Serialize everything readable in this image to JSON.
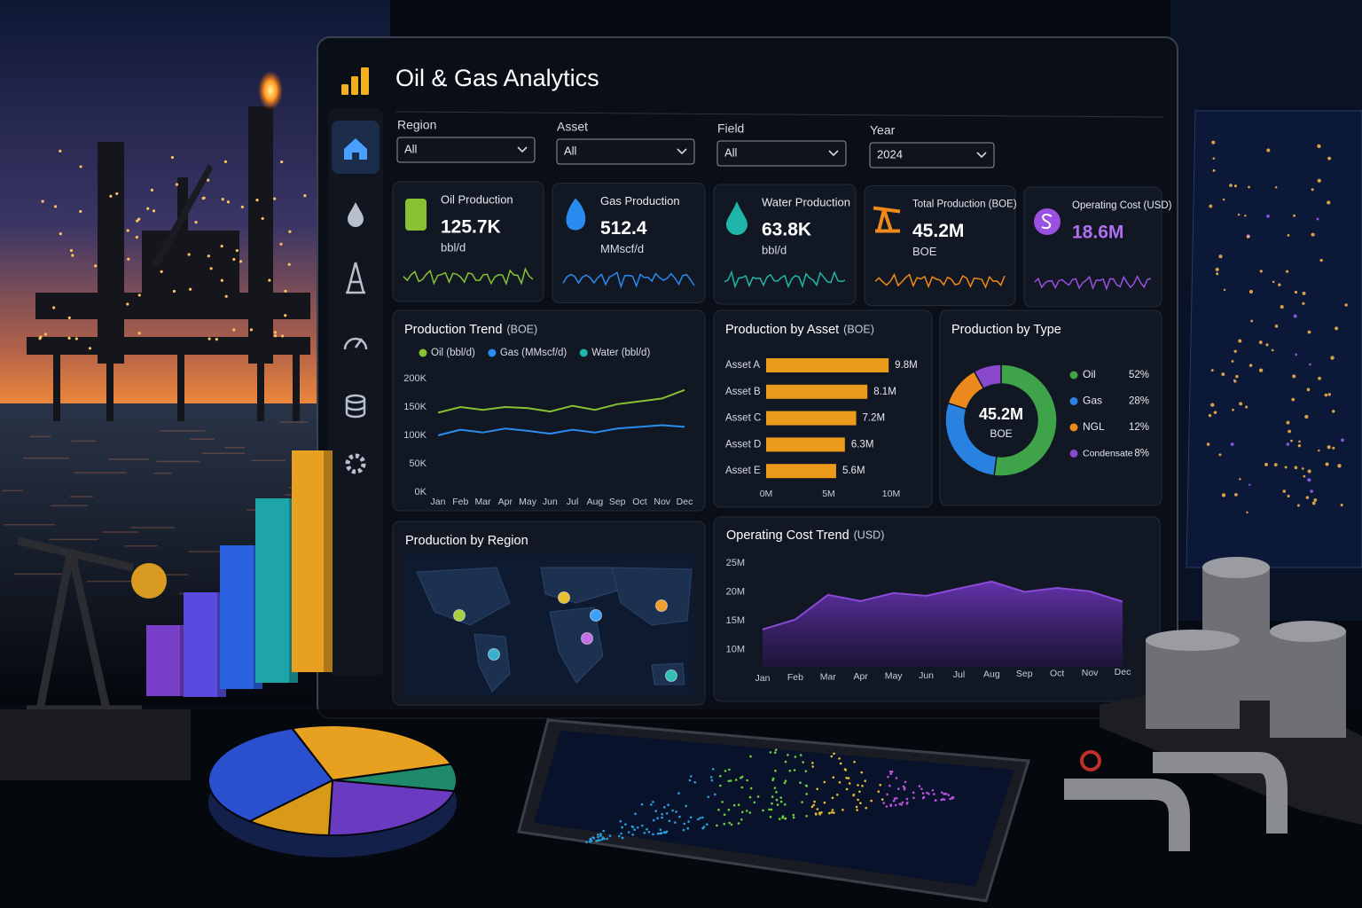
{
  "header": {
    "title": "Oil & Gas Analytics"
  },
  "filters": [
    {
      "label": "Region",
      "value": "All"
    },
    {
      "label": "Asset",
      "value": "All"
    },
    {
      "label": "Field",
      "value": "All"
    },
    {
      "label": "Year",
      "value": "2024"
    }
  ],
  "kpis": [
    {
      "label": "Oil Production",
      "value": "125.7K",
      "unit": "bbl/d"
    },
    {
      "label": "Gas Production",
      "value": "512.4",
      "unit": "MMscf/d"
    },
    {
      "label": "Water Production",
      "value": "63.8K",
      "unit": "bbl/d"
    },
    {
      "label": "Total Production (BOE)",
      "value": "45.2M",
      "unit": "BOE"
    },
    {
      "label": "Operating Cost (USD)",
      "value": "18.6M"
    }
  ],
  "map": {
    "title": "Production by Region"
  },
  "chart_data": [
    {
      "type": "line",
      "title": "Production Trend",
      "unit": "(BOE)",
      "categories": [
        "Jan",
        "Feb",
        "Mar",
        "Apr",
        "May",
        "Jun",
        "Jul",
        "Aug",
        "Sep",
        "Oct",
        "Nov",
        "Dec"
      ],
      "series": [
        {
          "name": "Oil (bbl/d)",
          "color": "#86c232",
          "values": [
            140000,
            150000,
            145000,
            150000,
            148000,
            142000,
            152000,
            145000,
            155000,
            160000,
            165000,
            180000
          ]
        },
        {
          "name": "Gas (MMscf/d)",
          "color": "#2a8cf0",
          "values": [
            100000,
            110000,
            105000,
            112000,
            108000,
            103000,
            110000,
            105000,
            112000,
            115000,
            118000,
            115000
          ]
        },
        {
          "name": "Water (bbl/d)",
          "color": "#1fb5a8",
          "values": [
            null,
            null,
            null,
            null,
            null,
            null,
            null,
            null,
            null,
            null,
            null,
            null
          ]
        }
      ],
      "ylim": [
        0,
        200000
      ],
      "yticks": [
        {
          "value": 0,
          "label": "0K"
        },
        {
          "value": 50000,
          "label": "50K"
        },
        {
          "value": 100000,
          "label": "100K"
        },
        {
          "value": 150000,
          "label": "150K"
        },
        {
          "value": 200000,
          "label": "200K"
        }
      ],
      "grid": false
    },
    {
      "type": "bar",
      "orientation": "horizontal",
      "title": "Production by Asset",
      "unit": "(BOE)",
      "categories": [
        "Asset A",
        "Asset B",
        "Asset C",
        "Asset D",
        "Asset E"
      ],
      "values": [
        9800000,
        8100000,
        7200000,
        6300000,
        5600000
      ],
      "value_labels": [
        "9.8M",
        "8.1M",
        "7.2M",
        "6.3M",
        "5.6M"
      ],
      "color": "#eb9a1c",
      "xlim": [
        0,
        10000000
      ],
      "xticks": [
        {
          "value": 0,
          "label": "0M"
        },
        {
          "value": 5000000,
          "label": "5M"
        },
        {
          "value": 10000000,
          "label": "10M"
        }
      ]
    },
    {
      "type": "pie",
      "title": "Production by Type",
      "center_value": "45.2M",
      "center_unit": "BOE",
      "categories": [
        "Oil",
        "Gas",
        "NGL",
        "Condensate"
      ],
      "values": [
        52,
        28,
        12,
        8
      ],
      "value_labels": [
        "52%",
        "28%",
        "12%",
        "8%"
      ],
      "colors": [
        "#3fa34a",
        "#2a82e0",
        "#ec8a1e",
        "#8a48cc"
      ]
    },
    {
      "type": "area",
      "title": "Operating Cost Trend",
      "unit": "(USD)",
      "categories": [
        "Jan",
        "Feb",
        "Mar",
        "Apr",
        "May",
        "Jun",
        "Jul",
        "Aug",
        "Sep",
        "Oct",
        "Nov",
        "Dec"
      ],
      "values": [
        13500000,
        15200000,
        19500000,
        18400000,
        19800000,
        19300000,
        20600000,
        21800000,
        20000000,
        20700000,
        20100000,
        18300000
      ],
      "color": "#8a4ad8",
      "ylim": [
        7000000,
        25000000
      ],
      "yticks": [
        {
          "value": 10000000,
          "label": "10M"
        },
        {
          "value": 15000000,
          "label": "15M"
        },
        {
          "value": 20000000,
          "label": "20M"
        },
        {
          "value": 25000000,
          "label": "25M"
        }
      ]
    }
  ]
}
